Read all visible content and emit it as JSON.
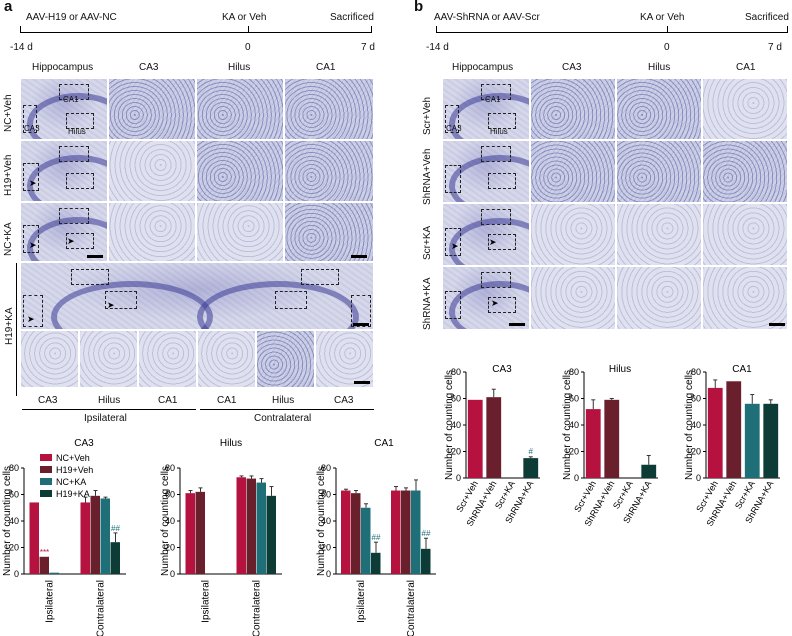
{
  "panel_a": {
    "letter": "a",
    "timeline": {
      "treatment_label": "AAV-H19 or AAV-NC",
      "ka_label": "KA or Veh",
      "end_label": "Sacrificed",
      "ticks": [
        "-14 d",
        "0",
        "7 d"
      ]
    },
    "column_headers": [
      "Hippocampus",
      "CA3",
      "Hilus",
      "CA1"
    ],
    "row_labels": [
      "NC+Veh",
      "H19+Veh",
      "NC+KA",
      "H19+KA"
    ],
    "region_labels": {
      "ca1": "CA1",
      "ca3": "CA3",
      "hilus": "Hilus"
    },
    "bottom_strip_labels": [
      "CA3",
      "Hilus",
      "CA1",
      "CA1",
      "Hilus",
      "CA3"
    ],
    "side_labels": {
      "ipsilateral": "Ipsilateral",
      "contralateral": "Contralateral"
    }
  },
  "panel_b": {
    "letter": "b",
    "timeline": {
      "treatment_label": "AAV-ShRNA or AAV-Scr",
      "ka_label": "KA or Veh",
      "end_label": "Sacrificed",
      "ticks": [
        "-14 d",
        "0",
        "7 d"
      ]
    },
    "column_headers": [
      "Hippocampus",
      "CA3",
      "Hilus",
      "CA1"
    ],
    "row_labels": [
      "Scr+Veh",
      "ShRNA+Veh",
      "Scr+KA",
      "ShRNA+KA"
    ],
    "region_labels": {
      "ca1": "CA1",
      "ca3": "CA3",
      "hilus": "Hilus"
    }
  },
  "colors": {
    "nc_veh": "#b5123f",
    "h19_veh": "#6a1f2c",
    "nc_ka": "#1f6f78",
    "h19_ka": "#0d3b36"
  },
  "legend_a": [
    "NC+Veh",
    "H19+Veh",
    "NC+KA",
    "H19+KA"
  ],
  "chart_data": [
    {
      "type": "bar",
      "title": "CA3",
      "ylabel": "Number of counting cells",
      "ylim": [
        0,
        80
      ],
      "yticks": [
        "0",
        "20",
        "40",
        "60",
        "80"
      ],
      "categories": [
        "Ipsilateral",
        "Contralateral"
      ],
      "series": [
        {
          "name": "NC+Veh",
          "values": [
            54,
            54
          ],
          "errors": [
            0,
            4
          ]
        },
        {
          "name": "H19+Veh",
          "values": [
            13,
            59
          ],
          "errors": [
            0,
            4
          ]
        },
        {
          "name": "NC+KA",
          "values": [
            1,
            57
          ],
          "errors": [
            0,
            1
          ]
        },
        {
          "name": "H19+KA",
          "values": [
            0,
            24
          ],
          "errors": [
            0,
            7
          ]
        }
      ],
      "annotations": [
        {
          "category": 0,
          "series": 1,
          "text": "***"
        },
        {
          "category": 1,
          "series": 3,
          "text": "##"
        }
      ]
    },
    {
      "type": "bar",
      "title": "Hilus",
      "ylabel": "Number of counting cells",
      "ylim": [
        0,
        80
      ],
      "yticks": [
        "0",
        "20",
        "40",
        "60",
        "80"
      ],
      "categories": [
        "Ipsilateral",
        "Contralateral"
      ],
      "series": [
        {
          "name": "NC+Veh",
          "values": [
            61,
            73
          ],
          "errors": [
            2,
            1
          ]
        },
        {
          "name": "H19+Veh",
          "values": [
            62,
            72
          ],
          "errors": [
            3,
            2
          ]
        },
        {
          "name": "NC+KA",
          "values": [
            0,
            69
          ],
          "errors": [
            0,
            3
          ]
        },
        {
          "name": "H19+KA",
          "values": [
            0,
            59
          ],
          "errors": [
            0,
            7
          ]
        }
      ],
      "annotations": []
    },
    {
      "type": "bar",
      "title": "CA1",
      "ylabel": "Number of counting cells",
      "ylim": [
        0,
        80
      ],
      "yticks": [
        "0",
        "20",
        "40",
        "60",
        "80"
      ],
      "categories": [
        "Ipsilateral",
        "Contralateral"
      ],
      "series": [
        {
          "name": "NC+Veh",
          "values": [
            63,
            63
          ],
          "errors": [
            1,
            3
          ]
        },
        {
          "name": "H19+Veh",
          "values": [
            61,
            63
          ],
          "errors": [
            2,
            2
          ]
        },
        {
          "name": "NC+KA",
          "values": [
            50,
            63
          ],
          "errors": [
            3,
            8
          ]
        },
        {
          "name": "H19+KA",
          "values": [
            16,
            19
          ],
          "errors": [
            8,
            8
          ]
        }
      ],
      "annotations": [
        {
          "category": 0,
          "series": 3,
          "text": "##"
        },
        {
          "category": 1,
          "series": 3,
          "text": "##"
        }
      ]
    },
    {
      "type": "bar",
      "title": "CA3",
      "ylabel": "Number of counting cells",
      "ylim": [
        0,
        80
      ],
      "yticks": [
        "0",
        "20",
        "40",
        "60",
        "80"
      ],
      "categories": [
        "Scr+Veh",
        "ShRNA+Veh",
        "Scr+KA",
        "ShRNA+KA"
      ],
      "values": [
        59,
        61,
        0,
        15
      ],
      "errors": [
        0,
        6,
        0,
        1
      ],
      "bar_colors": [
        "#b5123f",
        "#6a1f2c",
        "#1f6f78",
        "#0d3b36"
      ],
      "annotations": [
        {
          "index": 3,
          "text": "#"
        }
      ]
    },
    {
      "type": "bar",
      "title": "Hilus",
      "ylabel": "Number of counting cells",
      "ylim": [
        0,
        80
      ],
      "yticks": [
        "0",
        "20",
        "40",
        "60",
        "80"
      ],
      "categories": [
        "Scr+Veh",
        "ShRNA+Veh",
        "Scr+KA",
        "ShRNA+KA"
      ],
      "values": [
        52,
        59,
        0,
        10
      ],
      "errors": [
        7,
        1,
        0,
        7
      ],
      "bar_colors": [
        "#b5123f",
        "#6a1f2c",
        "#1f6f78",
        "#0d3b36"
      ],
      "annotations": []
    },
    {
      "type": "bar",
      "title": "CA1",
      "ylabel": "Number of counting cells",
      "ylim": [
        0,
        80
      ],
      "yticks": [
        "0",
        "20",
        "40",
        "60",
        "80"
      ],
      "categories": [
        "Scr+Veh",
        "ShRNA+Veh",
        "Scr+KA",
        "ShRNA+KA"
      ],
      "values": [
        68,
        73,
        56,
        56
      ],
      "errors": [
        6,
        0,
        7,
        3
      ],
      "bar_colors": [
        "#b5123f",
        "#6a1f2c",
        "#1f6f78",
        "#0d3b36"
      ],
      "annotations": []
    }
  ]
}
